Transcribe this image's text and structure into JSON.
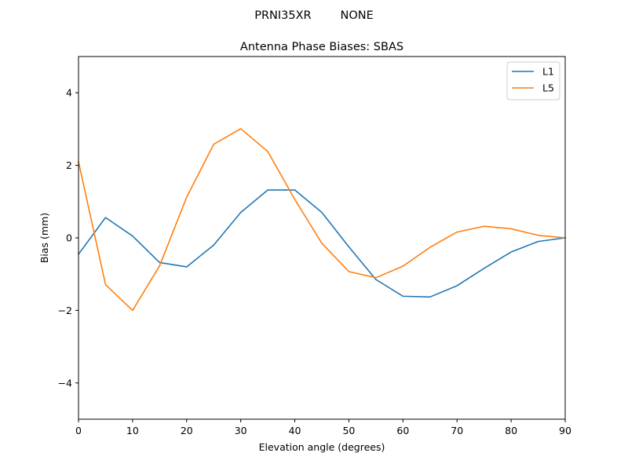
{
  "chart_data": {
    "type": "line",
    "suptitle": "PRNI35XR        NONE",
    "title": "Antenna Phase Biases: SBAS",
    "xlabel": "Elevation angle (degrees)",
    "ylabel": "Bias (mm)",
    "xlim": [
      0,
      90
    ],
    "ylim": [
      -5,
      5
    ],
    "xticks": [
      0,
      10,
      20,
      30,
      40,
      50,
      60,
      70,
      80,
      90
    ],
    "yticks": [
      -4,
      -2,
      0,
      2,
      4
    ],
    "ytick_labels": [
      "−4",
      "−2",
      "0",
      "2",
      "4"
    ],
    "grid": false,
    "legend_position": "top-right",
    "x": [
      0,
      5,
      10,
      15,
      20,
      25,
      30,
      35,
      40,
      45,
      50,
      55,
      60,
      65,
      70,
      75,
      80,
      85,
      90
    ],
    "series": [
      {
        "name": "L1",
        "color": "#1f77b4",
        "values": [
          -0.45,
          0.56,
          0.05,
          -0.68,
          -0.8,
          -0.2,
          0.7,
          1.32,
          1.32,
          0.7,
          -0.25,
          -1.15,
          -1.61,
          -1.63,
          -1.32,
          -0.84,
          -0.39,
          -0.1,
          0.0
        ]
      },
      {
        "name": "L5",
        "color": "#ff7f0e",
        "values": [
          2.1,
          -1.29,
          -2.0,
          -0.77,
          1.12,
          2.58,
          3.01,
          2.38,
          1.06,
          -0.15,
          -0.93,
          -1.1,
          -0.78,
          -0.26,
          0.16,
          0.32,
          0.25,
          0.07,
          0.0
        ]
      }
    ]
  }
}
